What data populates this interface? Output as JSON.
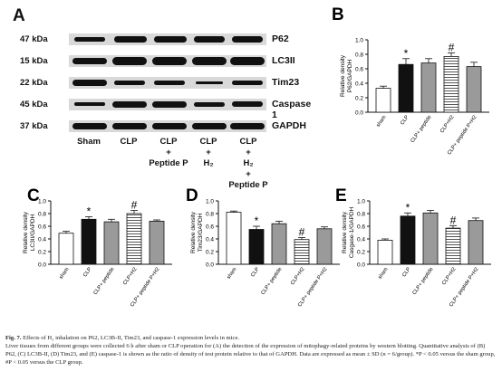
{
  "blot": {
    "letter": "A",
    "kda_labels": [
      "47 kDa",
      "15 kDa",
      "22 kDa",
      "45 kDa",
      "37 kDa"
    ],
    "proteins": [
      "P62",
      "LC3II",
      "Tim23",
      "Caspase 1",
      "GAPDH"
    ],
    "groups": [
      {
        "lines": [
          "Sham"
        ]
      },
      {
        "lines": [
          "CLP"
        ]
      },
      {
        "lines": [
          "CLP",
          "+",
          "Peptide P"
        ]
      },
      {
        "lines": [
          "CLP",
          "+",
          "H₂"
        ]
      },
      {
        "lines": [
          "CLP",
          "+",
          "H₂",
          "+",
          "Peptide P"
        ]
      }
    ]
  },
  "chart_data": [
    {
      "letter": "B",
      "type": "bar",
      "ylabel_lines": [
        "Relative density",
        "P62/GAPDH"
      ],
      "ylim": [
        0.0,
        1.0
      ],
      "yticks": [
        "0.0",
        "0.2",
        "0.4",
        "0.6",
        "0.8",
        "1.0"
      ],
      "categories": [
        "sham",
        "CLP",
        "CLP+ peptide",
        "CLP+H2",
        "CLP+ peptide P+H2"
      ],
      "values": [
        0.33,
        0.66,
        0.68,
        0.77,
        0.63
      ],
      "errors": [
        0.03,
        0.08,
        0.06,
        0.05,
        0.06
      ],
      "annotations": [
        "",
        "*",
        "",
        "#",
        ""
      ],
      "patterns": [
        "white",
        "black",
        "gray",
        "hstripe",
        "gray"
      ]
    },
    {
      "letter": "C",
      "type": "bar",
      "ylabel_lines": [
        "Relative density",
        "LC3II/GAPDH"
      ],
      "ylim": [
        0.0,
        1.0
      ],
      "yticks": [
        "0.0",
        "0.2",
        "0.4",
        "0.6",
        "0.8",
        "1.0"
      ],
      "categories": [
        "sham",
        "CLP",
        "CLP+ peptide",
        "CLP+H2",
        "CLP+ peptide P+H2"
      ],
      "values": [
        0.49,
        0.71,
        0.67,
        0.8,
        0.68
      ],
      "errors": [
        0.03,
        0.04,
        0.04,
        0.05,
        0.02
      ],
      "annotations": [
        "",
        "*",
        "",
        "#",
        ""
      ],
      "patterns": [
        "white",
        "black",
        "gray",
        "hstripe",
        "gray"
      ]
    },
    {
      "letter": "D",
      "type": "bar",
      "ylabel_lines": [
        "Relative density",
        "Tim23/GAPDH"
      ],
      "ylim": [
        0.0,
        1.0
      ],
      "yticks": [
        "0.0",
        "0.2",
        "0.4",
        "0.6",
        "0.8",
        "1.0"
      ],
      "categories": [
        "sham",
        "CLP",
        "CLP+ peptide",
        "CLP+H2",
        "CLP+ peptide P+H2"
      ],
      "values": [
        0.82,
        0.55,
        0.64,
        0.39,
        0.56
      ],
      "errors": [
        0.02,
        0.05,
        0.04,
        0.03,
        0.03
      ],
      "annotations": [
        "",
        "*",
        "",
        "#",
        ""
      ],
      "patterns": [
        "white",
        "black",
        "gray",
        "hstripe",
        "gray"
      ]
    },
    {
      "letter": "E",
      "type": "bar",
      "ylabel_lines": [
        "Relative density",
        "Casgase-1/GAPDH"
      ],
      "ylim": [
        0.0,
        1.0
      ],
      "yticks": [
        "0.0",
        "0.2",
        "0.4",
        "0.6",
        "0.8",
        "1.0"
      ],
      "categories": [
        "sham",
        "CLP",
        "CLP+ peptide",
        "CLP+H2",
        "CLP+ peptide P+H2"
      ],
      "values": [
        0.38,
        0.76,
        0.81,
        0.57,
        0.69
      ],
      "errors": [
        0.02,
        0.05,
        0.04,
        0.04,
        0.04
      ],
      "annotations": [
        "",
        "*",
        "",
        "#",
        ""
      ],
      "patterns": [
        "white",
        "black",
        "gray",
        "hstripe",
        "gray"
      ]
    }
  ],
  "caption": {
    "label": "Fig. 7.",
    "title": "Effects of H₂ inhalation on P62, LC3B-II, Tim23, and caspase-1 expression levels in mice.",
    "body": "Liver tissues from different groups were collected 6 h after sham or CLP operation for (A) the detection of the expression of mitophagy-related proteins by western blotting. Quantitative analysis of (B) P62, (C) LC3B-II, (D) Tim23, and (E) caspase-1 is shown as the ratio of density of test protein relative to that of GAPDH. Data are expressed as mean ± SD (n = 6/group). *P < 0.05 versus the sham group, #P < 0.05 versus the CLP group."
  },
  "colors": {
    "bar_black": "#111111",
    "bar_gray": "#9a9a9a",
    "bar_white": "#ffffff",
    "blot_bg": "#d9d9d9"
  }
}
